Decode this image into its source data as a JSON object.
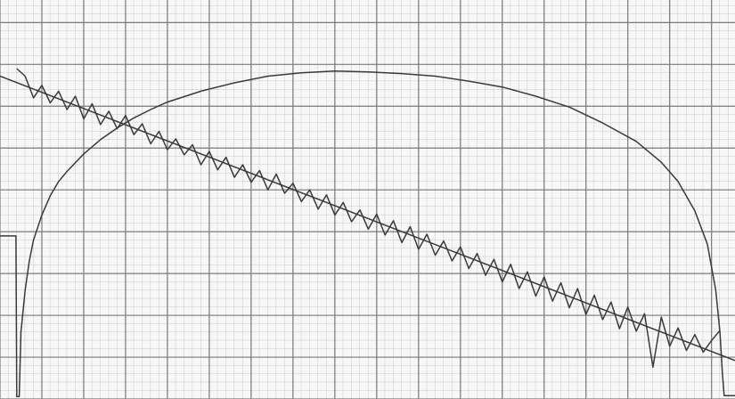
{
  "chart_data": {
    "type": "line",
    "xlim": [
      0,
      87.8
    ],
    "ylim": [
      0,
      47.7
    ],
    "xticks": [
      0,
      5,
      10,
      15,
      20,
      25,
      30,
      35,
      40,
      45,
      50,
      55,
      60,
      65,
      70,
      75,
      80,
      85
    ],
    "yticks": [
      0,
      5,
      10,
      15,
      20,
      25,
      30,
      35,
      40,
      45
    ],
    "grid": true,
    "series": [
      {
        "color": "#3a3a3a",
        "x": [
          0,
          1.9,
          2.0,
          2.3,
          2.5,
          3,
          3.5,
          4,
          5,
          6,
          7,
          8,
          10,
          12,
          14,
          16,
          18,
          20,
          24,
          28,
          32,
          36,
          40,
          44,
          48,
          52,
          56,
          60,
          64,
          68,
          72,
          76,
          79,
          81,
          83,
          84.5,
          85.5,
          86,
          86.3,
          86.5,
          87.8
        ],
        "values": [
          19.5,
          19.5,
          0.3,
          0.3,
          8,
          13,
          16.5,
          19,
          22,
          24.3,
          26,
          27.2,
          29.3,
          31,
          32.4,
          33.6,
          34.6,
          35.5,
          36.8,
          37.8,
          38.6,
          39,
          39.2,
          39.1,
          38.9,
          38.6,
          38,
          37.3,
          36.2,
          34.9,
          33,
          30.8,
          28.3,
          26,
          22.5,
          18.5,
          13,
          8,
          3,
          0.4,
          0.4
        ]
      },
      {
        "color": "#3a3a3a",
        "x": [
          2,
          3,
          4,
          5,
          6,
          7,
          8,
          9,
          10,
          11,
          12,
          13,
          14,
          15,
          16,
          17,
          18,
          19,
          20,
          21,
          22,
          23,
          24,
          25,
          26,
          27,
          28,
          29,
          30,
          31,
          32,
          33,
          34,
          35,
          36,
          37,
          38,
          39,
          40,
          41,
          42,
          43,
          44,
          45,
          46,
          47,
          48,
          49,
          50,
          51,
          52,
          53,
          54,
          55,
          56,
          57,
          58,
          59,
          60,
          61,
          62,
          63,
          64,
          65,
          66,
          67,
          68,
          69,
          70,
          71,
          72,
          73,
          74,
          75,
          76,
          77,
          78,
          79,
          80,
          81,
          82,
          83,
          84,
          85,
          86
        ],
        "values": [
          39.5,
          38.6,
          36.0,
          37.5,
          35.4,
          36.8,
          34.6,
          36.2,
          33.5,
          35.3,
          32.8,
          34.4,
          32.3,
          33.9,
          31.6,
          32.9,
          30.5,
          32.0,
          29.8,
          31.1,
          29.2,
          30.4,
          28.0,
          29.6,
          27.4,
          28.9,
          26.5,
          28.0,
          25.9,
          27.3,
          25.0,
          26.9,
          24.6,
          25.8,
          23.6,
          25.0,
          22.7,
          24.4,
          22.0,
          23.5,
          21.2,
          22.6,
          20.3,
          22.1,
          19.6,
          21.3,
          18.7,
          20.6,
          17.9,
          19.7,
          17.2,
          18.9,
          16.5,
          18.2,
          15.6,
          17.4,
          14.8,
          16.7,
          14.0,
          16.1,
          13.2,
          15.2,
          12.3,
          14.6,
          11.7,
          13.9,
          10.9,
          13.2,
          10.1,
          12.4,
          9.5,
          11.6,
          8.4,
          11.0,
          8.1,
          10.2,
          3.8,
          9.8,
          6.3,
          8.5,
          5.8,
          7.7,
          5.6,
          7.0,
          8.2
        ]
      },
      {
        "color": "#3a3a3a",
        "x": [
          0,
          87.8
        ],
        "values": [
          38.6,
          4.6
        ]
      }
    ]
  }
}
